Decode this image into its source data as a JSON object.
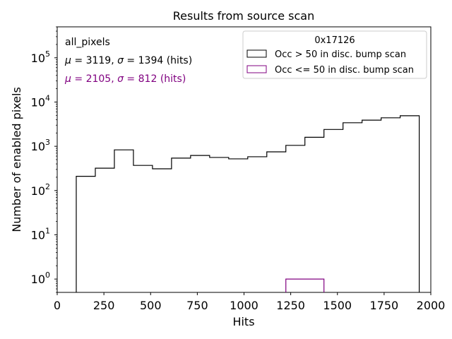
{
  "chart_data": {
    "type": "histogram",
    "title": "Results from source scan",
    "xlabel": "Hits",
    "ylabel": "Number of enabled pixels",
    "yscale": "log",
    "xlim": [
      0,
      2000
    ],
    "ylim": [
      0.5,
      500000
    ],
    "x_ticks": [
      {
        "value": 0,
        "label": "0"
      },
      {
        "value": 250,
        "label": "250"
      },
      {
        "value": 500,
        "label": "500"
      },
      {
        "value": 750,
        "label": "750"
      },
      {
        "value": 1000,
        "label": "1000"
      },
      {
        "value": 1250,
        "label": "1250"
      },
      {
        "value": 1500,
        "label": "1500"
      },
      {
        "value": 1750,
        "label": "1750"
      },
      {
        "value": 2000,
        "label": "2000"
      }
    ],
    "y_ticks": [
      {
        "value": 1,
        "base": "10",
        "exp": "0"
      },
      {
        "value": 10,
        "base": "10",
        "exp": "1"
      },
      {
        "value": 100,
        "base": "10",
        "exp": "2"
      },
      {
        "value": 1000,
        "base": "10",
        "exp": "3"
      },
      {
        "value": 10000,
        "base": "10",
        "exp": "4"
      },
      {
        "value": 100000,
        "base": "10",
        "exp": "5"
      }
    ],
    "legend_title": "0x17126",
    "legend_position": "top-right",
    "bin_edges": [
      102,
      204,
      306,
      408,
      510,
      612,
      714,
      816,
      918,
      1020,
      1122,
      1224,
      1326,
      1428,
      1530,
      1632,
      1734,
      1836,
      1938
    ],
    "series": [
      {
        "name": "Occ > 50 in disc. bump scan",
        "color": "#000000",
        "values": [
          210,
          320,
          830,
          370,
          310,
          540,
          620,
          560,
          520,
          580,
          750,
          1050,
          1600,
          2400,
          3400,
          3900,
          4400,
          4900
        ]
      },
      {
        "name": "Occ <= 50 in disc. bump scan",
        "color": "#800080",
        "values": [
          0,
          0,
          0,
          0,
          0,
          0,
          0,
          0,
          0,
          0,
          0,
          1,
          1,
          0,
          0,
          0,
          0,
          0
        ]
      }
    ],
    "annotations": {
      "label": "all_pixels",
      "stats": [
        {
          "mu": "3119",
          "sigma": "1394",
          "unit": "(hits)",
          "color": "#000000"
        },
        {
          "mu": "2105",
          "sigma": "812",
          "unit": "(hits)",
          "color": "#800080"
        }
      ]
    }
  }
}
